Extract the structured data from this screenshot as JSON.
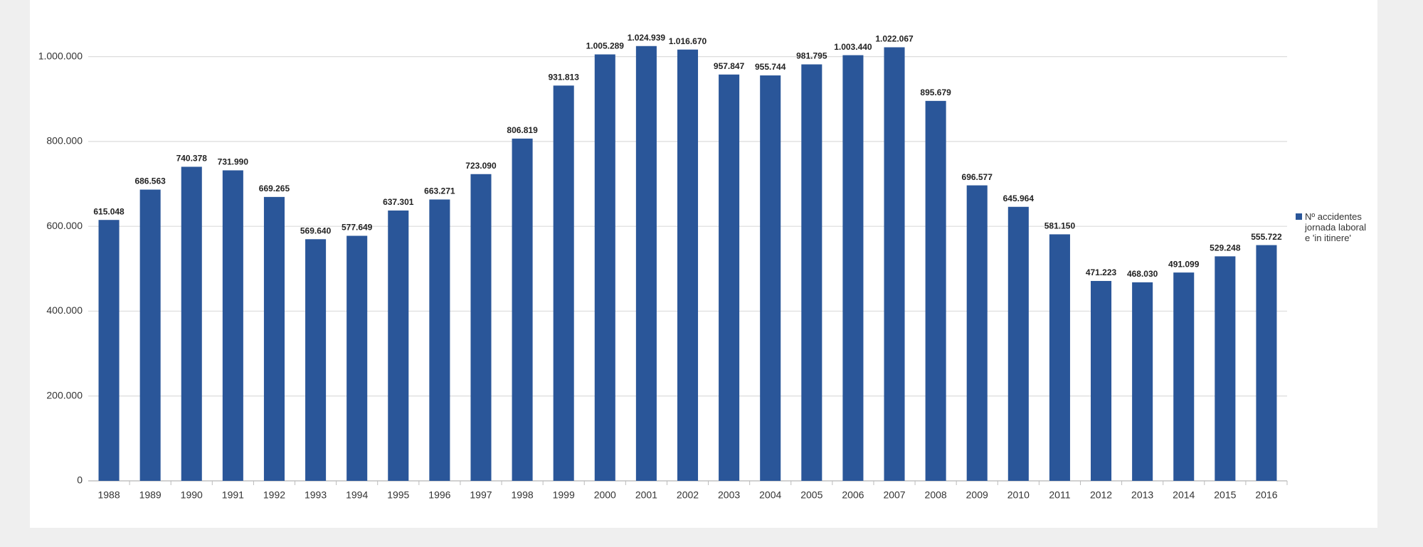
{
  "chart_data": {
    "type": "bar",
    "categories": [
      "1988",
      "1989",
      "1990",
      "1991",
      "1992",
      "1993",
      "1994",
      "1995",
      "1996",
      "1997",
      "1998",
      "1999",
      "2000",
      "2001",
      "2002",
      "2003",
      "2004",
      "2005",
      "2006",
      "2007",
      "2008",
      "2009",
      "2010",
      "2011",
      "2012",
      "2013",
      "2014",
      "2015",
      "2016"
    ],
    "series": [
      {
        "name": "Nº accidentes jornada laboral e 'in itinere'",
        "color": "#2a5699",
        "values": [
          615048,
          686563,
          740378,
          731990,
          669265,
          569640,
          577649,
          637301,
          663271,
          723090,
          806819,
          931813,
          1005289,
          1024939,
          1016670,
          957847,
          955744,
          981795,
          1003440,
          1022067,
          895679,
          696577,
          645964,
          581150,
          471223,
          468030,
          491099,
          529248,
          555722
        ],
        "value_labels": [
          "615.048",
          "686.563",
          "740.378",
          "731.990",
          "669.265",
          "569.640",
          "577.649",
          "637.301",
          "663.271",
          "723.090",
          "806.819",
          "931.813",
          "1.005.289",
          "1.024.939",
          "1.016.670",
          "957.847",
          "955.744",
          "981.795",
          "1.003.440",
          "1.022.067",
          "895.679",
          "696.577",
          "645.964",
          "581.150",
          "471.223",
          "468.030",
          "491.099",
          "529.248",
          "555.722"
        ]
      }
    ],
    "ylim": [
      0,
      1100000
    ],
    "yticks": [
      0,
      {
        "value": 200000,
        "label": "200.000"
      },
      {
        "value": 400000,
        "label": "400.000"
      },
      {
        "value": 600000,
        "label": "600.000"
      },
      {
        "value": 800000,
        "label": "800.000"
      },
      {
        "value": 1000000,
        "label": "1.000.000"
      }
    ],
    "grid": true,
    "legend": "right"
  }
}
